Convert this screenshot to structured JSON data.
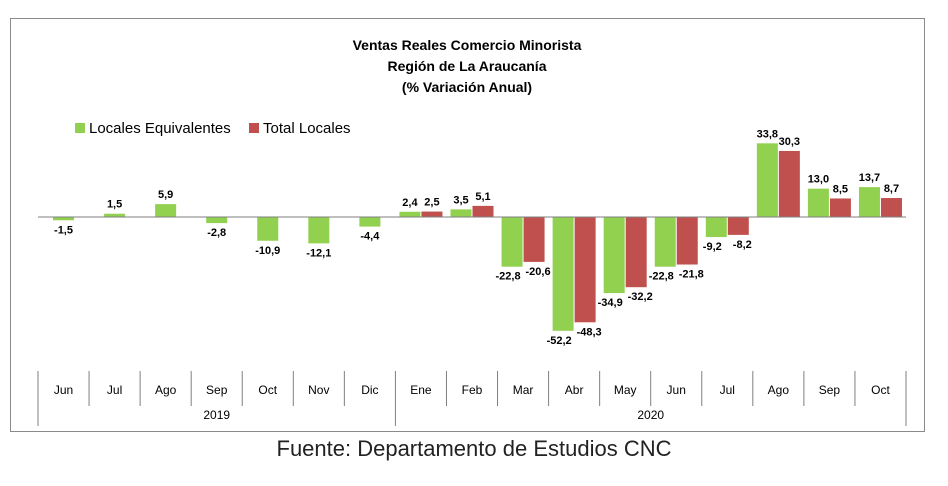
{
  "chart_data": {
    "type": "bar",
    "title": [
      "Ventas Reales Comercio Minorista",
      "Región de La Araucanía",
      "(% Variación Anual)"
    ],
    "categories": [
      "Jun",
      "Jul",
      "Ago",
      "Sep",
      "Oct",
      "Nov",
      "Dic",
      "Ene",
      "Feb",
      "Mar",
      "Abr",
      "May",
      "Jun",
      "Jul",
      "Ago",
      "Sep",
      "Oct"
    ],
    "year_groups": [
      {
        "label": "2019",
        "start": 0,
        "end": 6
      },
      {
        "label": "2020",
        "start": 7,
        "end": 16
      }
    ],
    "series": [
      {
        "name": "Locales Equivalentes",
        "color": "#92d050",
        "values": [
          -1.5,
          1.5,
          5.9,
          -2.8,
          -10.9,
          -12.1,
          -4.4,
          2.4,
          3.5,
          -22.8,
          -52.2,
          -34.9,
          -22.8,
          -9.2,
          33.8,
          13.0,
          13.7
        ],
        "labels": [
          "-1,5",
          "1,5",
          "5,9",
          "-2,8",
          "-10,9",
          "-12,1",
          "-4,4",
          "2,4",
          "3,5",
          "-22,8",
          "-52,2",
          "-34,9",
          "-22,8",
          "-9,2",
          "33,8",
          "13,0",
          "13,7"
        ]
      },
      {
        "name": "Total Locales",
        "color": "#c0504d",
        "values": [
          null,
          null,
          null,
          null,
          null,
          null,
          null,
          2.5,
          5.1,
          -20.6,
          -48.3,
          -32.2,
          -21.8,
          -8.2,
          30.3,
          8.5,
          8.7
        ],
        "labels": [
          "",
          "",
          "",
          "",
          "",
          "",
          "",
          "2,5",
          "5,1",
          "-20,6",
          "-48,3",
          "-32,2",
          "-21,8",
          "-8,2",
          "30,3",
          "8,5",
          "8,7"
        ]
      }
    ],
    "ylim": [
      -55,
      36
    ],
    "legend_position": "top-left",
    "grid": false
  },
  "source_note": "Fuente: Departamento de Estudios CNC"
}
